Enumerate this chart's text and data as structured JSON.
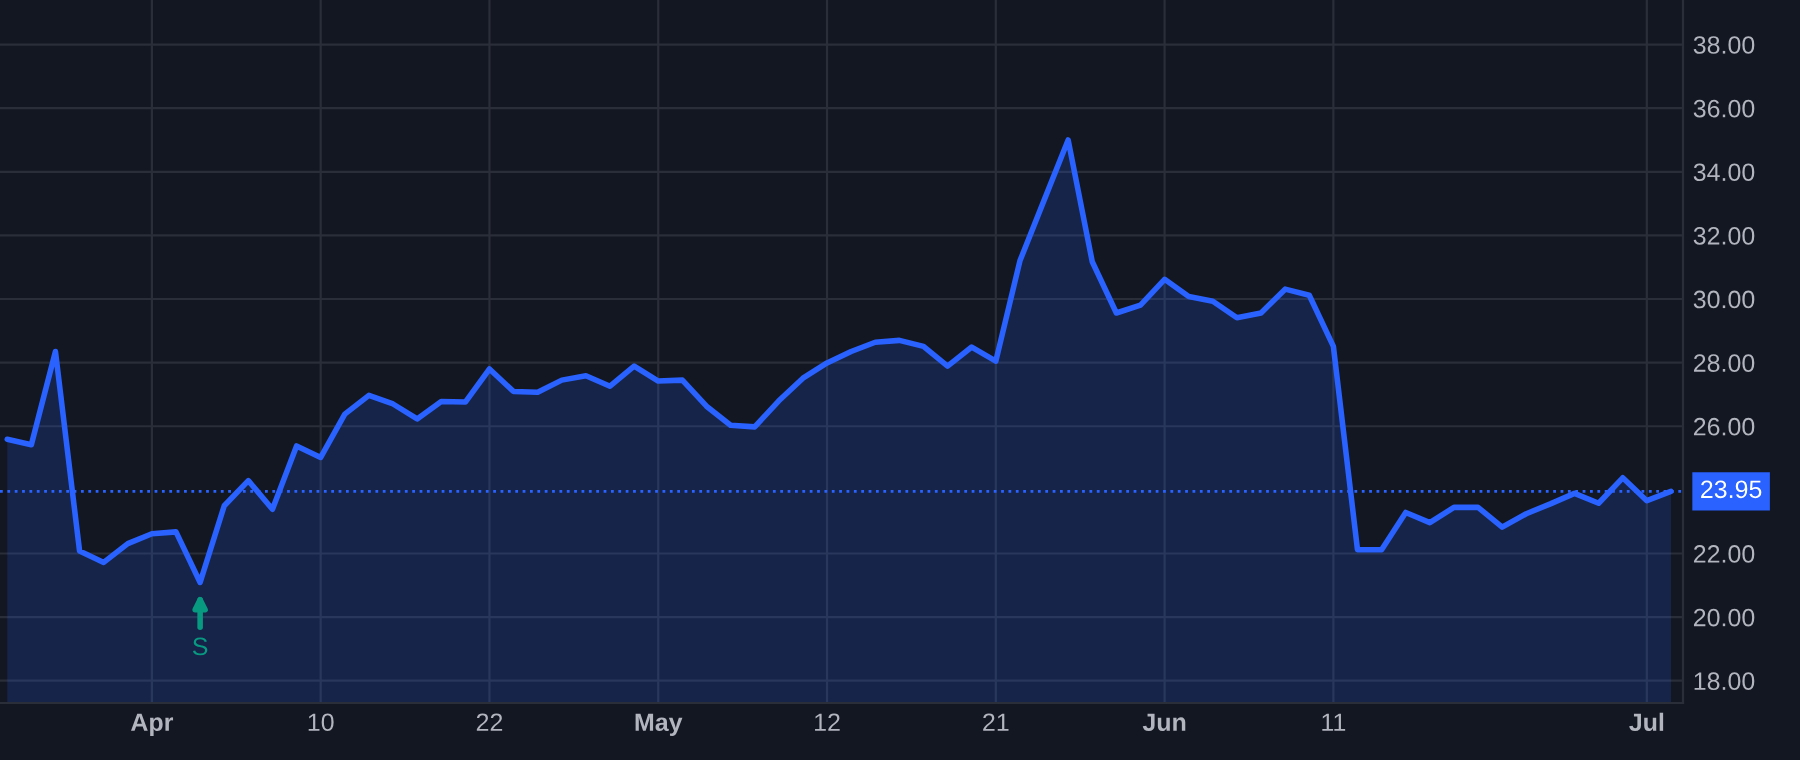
{
  "chart_data": {
    "type": "area",
    "categories": [
      null,
      null,
      null,
      null,
      null,
      null,
      "Apr",
      null,
      null,
      null,
      null,
      null,
      null,
      "10",
      null,
      null,
      null,
      null,
      null,
      null,
      "22",
      null,
      null,
      null,
      null,
      null,
      null,
      "May",
      null,
      null,
      null,
      null,
      null,
      null,
      "12",
      null,
      null,
      null,
      null,
      null,
      null,
      "21",
      null,
      null,
      null,
      null,
      null,
      null,
      "Jun",
      null,
      null,
      null,
      null,
      null,
      null,
      "11",
      null,
      null,
      null,
      null,
      null,
      null,
      null,
      null,
      null,
      null,
      null,
      null,
      "Jul",
      null
    ],
    "series": [
      {
        "color": "#2962ff",
        "values": [
          25.59,
          25.42,
          28.35,
          22.08,
          21.72,
          22.31,
          22.62,
          22.68,
          21.09,
          23.5,
          24.29,
          23.39,
          25.38,
          25.02,
          26.38,
          26.97,
          26.7,
          26.23,
          26.78,
          26.76,
          27.8,
          27.09,
          27.07,
          27.45,
          27.59,
          27.26,
          27.89,
          27.42,
          27.45,
          26.63,
          26.03,
          25.98,
          26.8,
          27.51,
          27.99,
          28.35,
          28.64,
          28.7,
          28.51,
          27.89,
          28.49,
          28.05,
          31.2,
          33.1,
          35.0,
          31.17,
          29.56,
          29.81,
          30.62,
          30.08,
          29.93,
          29.41,
          29.56,
          30.31,
          30.12,
          28.51,
          22.12,
          22.12,
          23.29,
          22.97,
          23.45,
          23.45,
          22.83,
          23.25,
          23.56,
          23.89,
          23.58,
          24.38,
          23.66,
          23.95
        ]
      }
    ],
    "ylim": [
      17.3,
      39.4
    ],
    "yticks": [
      {
        "value": 18,
        "label": "18.00"
      },
      {
        "value": 20,
        "label": "20.00"
      },
      {
        "value": 22,
        "label": "22.00"
      },
      {
        "value": 26,
        "label": "26.00"
      },
      {
        "value": 28,
        "label": "28.00"
      },
      {
        "value": 30,
        "label": "30.00"
      },
      {
        "value": 32,
        "label": "32.00"
      },
      {
        "value": 34,
        "label": "34.00"
      },
      {
        "value": 36,
        "label": "36.00"
      },
      {
        "value": 38,
        "label": "38.00"
      }
    ],
    "grid": true,
    "ref_lines": [
      {
        "axis": "y",
        "value": 23.95,
        "label": "23.95",
        "color": "#2962ff",
        "line_style": "dotted"
      }
    ],
    "annotations": [
      {
        "text": "S",
        "y": 21.09
      }
    ]
  }
}
